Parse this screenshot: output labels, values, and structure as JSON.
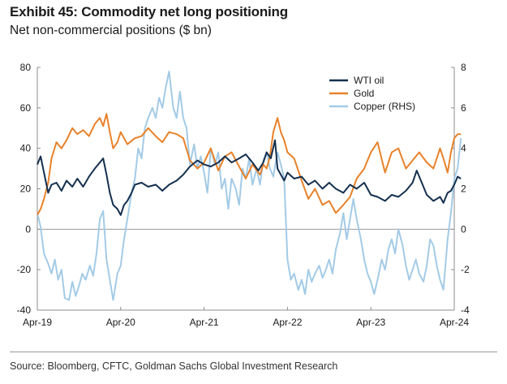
{
  "header": {
    "title": "Exhibit 45: Commodity net long positioning",
    "subtitle": "Net non-commercial positions ($ bn)"
  },
  "footer": {
    "source": "Source: Bloomberg, CFTC, Goldman Sachs Global Investment Research"
  },
  "chart_data": {
    "type": "line",
    "title": "Exhibit 45: Commodity net long positioning",
    "subtitle": "Net non-commercial positions ($ bn)",
    "x_labels": [
      "Apr-19",
      "Apr-20",
      "Apr-21",
      "Apr-22",
      "Apr-23",
      "Apr-24"
    ],
    "y_left": {
      "min": -40,
      "max": 80,
      "ticks": [
        "80",
        "60",
        "40",
        "20",
        "0",
        "-20",
        "-40"
      ]
    },
    "y_right": {
      "min": -4,
      "max": 8,
      "ticks": [
        "8",
        "6",
        "4",
        "2",
        "0",
        "-2",
        "-4"
      ]
    },
    "legend_position": "top-right",
    "series": [
      {
        "name": "WTI oil",
        "axis": "left",
        "color": "#14304f",
        "points": [
          [
            2019.25,
            32
          ],
          [
            2019.29,
            36
          ],
          [
            2019.33,
            28
          ],
          [
            2019.38,
            18
          ],
          [
            2019.42,
            22
          ],
          [
            2019.48,
            23
          ],
          [
            2019.54,
            19
          ],
          [
            2019.6,
            24
          ],
          [
            2019.67,
            21
          ],
          [
            2019.73,
            25
          ],
          [
            2019.8,
            21
          ],
          [
            2019.87,
            26
          ],
          [
            2019.94,
            30
          ],
          [
            2020.0,
            33
          ],
          [
            2020.04,
            35
          ],
          [
            2020.08,
            27
          ],
          [
            2020.12,
            18
          ],
          [
            2020.16,
            12
          ],
          [
            2020.21,
            10
          ],
          [
            2020.25,
            7
          ],
          [
            2020.29,
            12
          ],
          [
            2020.33,
            14
          ],
          [
            2020.38,
            18
          ],
          [
            2020.42,
            22
          ],
          [
            2020.5,
            23
          ],
          [
            2020.58,
            21
          ],
          [
            2020.67,
            22
          ],
          [
            2020.75,
            19
          ],
          [
            2020.83,
            22
          ],
          [
            2020.92,
            24
          ],
          [
            2021.0,
            27
          ],
          [
            2021.08,
            31
          ],
          [
            2021.17,
            34
          ],
          [
            2021.25,
            32
          ],
          [
            2021.33,
            31
          ],
          [
            2021.42,
            33
          ],
          [
            2021.5,
            36
          ],
          [
            2021.58,
            33
          ],
          [
            2021.67,
            35
          ],
          [
            2021.75,
            37
          ],
          [
            2021.83,
            33
          ],
          [
            2021.9,
            29
          ],
          [
            2021.96,
            33
          ],
          [
            2022.0,
            38
          ],
          [
            2022.05,
            35
          ],
          [
            2022.1,
            44
          ],
          [
            2022.13,
            30
          ],
          [
            2022.17,
            27
          ],
          [
            2022.21,
            24
          ],
          [
            2022.25,
            28
          ],
          [
            2022.33,
            25
          ],
          [
            2022.42,
            26
          ],
          [
            2022.5,
            22
          ],
          [
            2022.58,
            24
          ],
          [
            2022.67,
            20
          ],
          [
            2022.75,
            23
          ],
          [
            2022.83,
            20
          ],
          [
            2022.92,
            18
          ],
          [
            2023.0,
            22
          ],
          [
            2023.08,
            20
          ],
          [
            2023.17,
            23
          ],
          [
            2023.25,
            17
          ],
          [
            2023.33,
            16
          ],
          [
            2023.42,
            14
          ],
          [
            2023.5,
            17
          ],
          [
            2023.58,
            16
          ],
          [
            2023.67,
            19
          ],
          [
            2023.75,
            23
          ],
          [
            2023.8,
            29
          ],
          [
            2023.85,
            24
          ],
          [
            2023.92,
            17
          ],
          [
            2024.0,
            14
          ],
          [
            2024.08,
            16
          ],
          [
            2024.12,
            13
          ],
          [
            2024.17,
            18
          ],
          [
            2024.21,
            19
          ],
          [
            2024.25,
            22
          ],
          [
            2024.29,
            26
          ],
          [
            2024.33,
            25
          ]
        ]
      },
      {
        "name": "Gold",
        "axis": "left",
        "color": "#e8822a",
        "points": [
          [
            2019.25,
            7
          ],
          [
            2019.29,
            10
          ],
          [
            2019.33,
            15
          ],
          [
            2019.38,
            23
          ],
          [
            2019.42,
            35
          ],
          [
            2019.48,
            43
          ],
          [
            2019.54,
            40
          ],
          [
            2019.6,
            44
          ],
          [
            2019.67,
            50
          ],
          [
            2019.73,
            47
          ],
          [
            2019.8,
            49
          ],
          [
            2019.87,
            46
          ],
          [
            2019.94,
            52
          ],
          [
            2020.0,
            55
          ],
          [
            2020.04,
            51
          ],
          [
            2020.08,
            57
          ],
          [
            2020.12,
            48
          ],
          [
            2020.16,
            40
          ],
          [
            2020.21,
            43
          ],
          [
            2020.25,
            48
          ],
          [
            2020.33,
            42
          ],
          [
            2020.42,
            45
          ],
          [
            2020.5,
            46
          ],
          [
            2020.58,
            50
          ],
          [
            2020.67,
            46
          ],
          [
            2020.75,
            43
          ],
          [
            2020.83,
            48
          ],
          [
            2020.92,
            47
          ],
          [
            2021.0,
            45
          ],
          [
            2021.08,
            34
          ],
          [
            2021.17,
            30
          ],
          [
            2021.25,
            33
          ],
          [
            2021.33,
            40
          ],
          [
            2021.42,
            29
          ],
          [
            2021.5,
            36
          ],
          [
            2021.58,
            38
          ],
          [
            2021.67,
            31
          ],
          [
            2021.75,
            25
          ],
          [
            2021.83,
            32
          ],
          [
            2021.92,
            27
          ],
          [
            2021.96,
            32
          ],
          [
            2022.0,
            30
          ],
          [
            2022.04,
            36
          ],
          [
            2022.08,
            48
          ],
          [
            2022.13,
            55
          ],
          [
            2022.17,
            48
          ],
          [
            2022.21,
            44
          ],
          [
            2022.25,
            38
          ],
          [
            2022.33,
            35
          ],
          [
            2022.42,
            24
          ],
          [
            2022.5,
            15
          ],
          [
            2022.58,
            20
          ],
          [
            2022.67,
            12
          ],
          [
            2022.75,
            14
          ],
          [
            2022.83,
            8
          ],
          [
            2022.92,
            12
          ],
          [
            2023.0,
            16
          ],
          [
            2023.08,
            25
          ],
          [
            2023.17,
            30
          ],
          [
            2023.25,
            38
          ],
          [
            2023.33,
            43
          ],
          [
            2023.42,
            28
          ],
          [
            2023.5,
            38
          ],
          [
            2023.58,
            40
          ],
          [
            2023.67,
            30
          ],
          [
            2023.75,
            34
          ],
          [
            2023.83,
            38
          ],
          [
            2023.92,
            33
          ],
          [
            2024.0,
            30
          ],
          [
            2024.08,
            40
          ],
          [
            2024.12,
            35
          ],
          [
            2024.17,
            28
          ],
          [
            2024.21,
            38
          ],
          [
            2024.25,
            45
          ],
          [
            2024.29,
            47
          ],
          [
            2024.33,
            47
          ]
        ]
      },
      {
        "name": "Copper (RHS)",
        "axis": "right",
        "color": "#a3cbe6",
        "points": [
          [
            2019.25,
            0.8
          ],
          [
            2019.29,
            0.1
          ],
          [
            2019.33,
            -1.2
          ],
          [
            2019.38,
            -1.7
          ],
          [
            2019.42,
            -2.2
          ],
          [
            2019.46,
            -1.5
          ],
          [
            2019.5,
            -2.5
          ],
          [
            2019.54,
            -2.0
          ],
          [
            2019.58,
            -3.4
          ],
          [
            2019.63,
            -3.5
          ],
          [
            2019.67,
            -2.6
          ],
          [
            2019.71,
            -3.3
          ],
          [
            2019.75,
            -2.8
          ],
          [
            2019.79,
            -2.2
          ],
          [
            2019.83,
            -2.5
          ],
          [
            2019.88,
            -1.8
          ],
          [
            2019.92,
            -2.3
          ],
          [
            2019.96,
            -1.2
          ],
          [
            2020.0,
            0.5
          ],
          [
            2020.04,
            0.9
          ],
          [
            2020.08,
            -1.5
          ],
          [
            2020.12,
            -2.5
          ],
          [
            2020.16,
            -3.5
          ],
          [
            2020.21,
            -2.2
          ],
          [
            2020.25,
            -1.8
          ],
          [
            2020.29,
            -0.5
          ],
          [
            2020.33,
            0.5
          ],
          [
            2020.38,
            1.8
          ],
          [
            2020.42,
            2.5
          ],
          [
            2020.46,
            4.0
          ],
          [
            2020.5,
            3.5
          ],
          [
            2020.54,
            5.0
          ],
          [
            2020.58,
            5.5
          ],
          [
            2020.63,
            6.0
          ],
          [
            2020.67,
            5.5
          ],
          [
            2020.71,
            6.5
          ],
          [
            2020.75,
            6.0
          ],
          [
            2020.79,
            7.0
          ],
          [
            2020.83,
            7.8
          ],
          [
            2020.88,
            6.0
          ],
          [
            2020.92,
            5.5
          ],
          [
            2020.96,
            6.8
          ],
          [
            2021.0,
            5.5
          ],
          [
            2021.04,
            5.0
          ],
          [
            2021.08,
            3.2
          ],
          [
            2021.13,
            4.2
          ],
          [
            2021.17,
            3.0
          ],
          [
            2021.21,
            3.6
          ],
          [
            2021.25,
            2.8
          ],
          [
            2021.29,
            1.8
          ],
          [
            2021.33,
            4.0
          ],
          [
            2021.38,
            3.2
          ],
          [
            2021.42,
            3.8
          ],
          [
            2021.46,
            2.0
          ],
          [
            2021.5,
            2.5
          ],
          [
            2021.54,
            1.0
          ],
          [
            2021.58,
            2.5
          ],
          [
            2021.63,
            2.0
          ],
          [
            2021.67,
            1.2
          ],
          [
            2021.71,
            3.0
          ],
          [
            2021.75,
            2.5
          ],
          [
            2021.79,
            3.5
          ],
          [
            2021.83,
            2.2
          ],
          [
            2021.88,
            3.0
          ],
          [
            2021.92,
            2.2
          ],
          [
            2021.96,
            3.4
          ],
          [
            2022.0,
            3.8
          ],
          [
            2022.04,
            3.0
          ],
          [
            2022.08,
            2.6
          ],
          [
            2022.13,
            3.8
          ],
          [
            2022.17,
            3.2
          ],
          [
            2022.21,
            2.5
          ],
          [
            2022.25,
            -1.5
          ],
          [
            2022.29,
            -2.5
          ],
          [
            2022.33,
            -2.2
          ],
          [
            2022.38,
            -3.0
          ],
          [
            2022.42,
            -2.5
          ],
          [
            2022.46,
            -3.2
          ],
          [
            2022.5,
            -2.0
          ],
          [
            2022.54,
            -2.6
          ],
          [
            2022.58,
            -2.2
          ],
          [
            2022.63,
            -1.8
          ],
          [
            2022.67,
            -2.4
          ],
          [
            2022.71,
            -2.0
          ],
          [
            2022.75,
            -1.5
          ],
          [
            2022.79,
            -2.2
          ],
          [
            2022.83,
            -1.0
          ],
          [
            2022.88,
            -0.2
          ],
          [
            2022.92,
            0.8
          ],
          [
            2022.96,
            -0.5
          ],
          [
            2023.0,
            0.5
          ],
          [
            2023.04,
            1.5
          ],
          [
            2023.08,
            0.5
          ],
          [
            2023.13,
            -0.5
          ],
          [
            2023.17,
            -1.5
          ],
          [
            2023.21,
            -2.2
          ],
          [
            2023.25,
            -2.6
          ],
          [
            2023.29,
            -3.2
          ],
          [
            2023.33,
            -2.5
          ],
          [
            2023.38,
            -1.5
          ],
          [
            2023.42,
            -2.0
          ],
          [
            2023.46,
            -1.0
          ],
          [
            2023.5,
            -0.5
          ],
          [
            2023.54,
            -1.2
          ],
          [
            2023.58,
            0.0
          ],
          [
            2023.63,
            -0.8
          ],
          [
            2023.67,
            -1.8
          ],
          [
            2023.71,
            -2.5
          ],
          [
            2023.75,
            -2.0
          ],
          [
            2023.79,
            -1.5
          ],
          [
            2023.83,
            -2.2
          ],
          [
            2023.88,
            -2.6
          ],
          [
            2023.92,
            -1.8
          ],
          [
            2023.96,
            -0.5
          ],
          [
            2024.0,
            -0.8
          ],
          [
            2024.04,
            -1.8
          ],
          [
            2024.08,
            -2.5
          ],
          [
            2024.12,
            -3.0
          ],
          [
            2024.17,
            -0.5
          ],
          [
            2024.21,
            0.8
          ],
          [
            2024.25,
            2.5
          ],
          [
            2024.29,
            3.0
          ],
          [
            2024.33,
            4.5
          ]
        ]
      }
    ]
  }
}
